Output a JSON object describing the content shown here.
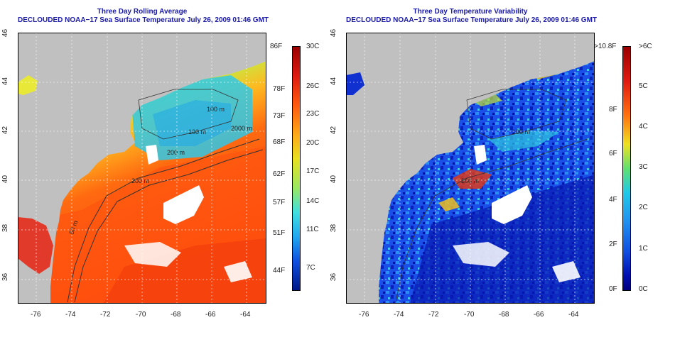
{
  "maps": [
    {
      "title": "Three Day Rolling Average",
      "subtitle": "DECLOUDED NOAA−17 Sea Surface Temperature July 26, 2009 01:46 GMT",
      "lat_ticks": [
        "36",
        "38",
        "40",
        "42",
        "44",
        "46"
      ],
      "lon_ticks": [
        "-76",
        "-74",
        "-72",
        "-70",
        "-68",
        "-66",
        "-64"
      ],
      "contour_labels": [
        "100 m",
        "100 m",
        "2000 m",
        "200 m",
        "200 m",
        "50 m"
      ],
      "colorbar": {
        "left_labels": [
          "86F",
          "78F",
          "73F",
          "68F",
          "62F",
          "57F",
          "51F",
          "44F"
        ],
        "right_labels": [
          "30C",
          "26C",
          "23C",
          "20C",
          "17C",
          "14C",
          "11C",
          "7C"
        ]
      }
    },
    {
      "title": "Three Day Temperature Variability",
      "subtitle": "DECLOUDED NOAA−17 Sea Surface Temperature July 26, 2009 01:46 GMT",
      "lat_ticks": [
        "36",
        "38",
        "40",
        "42",
        "44",
        "46"
      ],
      "lon_ticks": [
        "-76",
        "-74",
        "-72",
        "-70",
        "-68",
        "-66",
        "-64"
      ],
      "contour_labels": [
        "200 m",
        "100 m"
      ],
      "colorbar": {
        "left_labels": [
          ">10.8F",
          "8F",
          "6F",
          "4F",
          "2F",
          "0F"
        ],
        "right_labels": [
          ">6C",
          "5C",
          "4C",
          "3C",
          "2C",
          "1C",
          "0C"
        ]
      }
    }
  ],
  "colors": {
    "land": "#c0c0c0",
    "cloud": "#ffffff",
    "title": "#1a1aa6",
    "sst_scale": [
      "#9a0000",
      "#dd1a10",
      "#ff5a10",
      "#ffa818",
      "#e8e020",
      "#9ae860",
      "#40e0e0",
      "#20a8f0",
      "#1050e0",
      "#001888"
    ],
    "var_scale": [
      "#9a0000",
      "#e01a10",
      "#ff7010",
      "#f0e020",
      "#60e070",
      "#20c8e8",
      "#2090f0",
      "#1050e0",
      "#0010b0",
      "#000080"
    ]
  }
}
